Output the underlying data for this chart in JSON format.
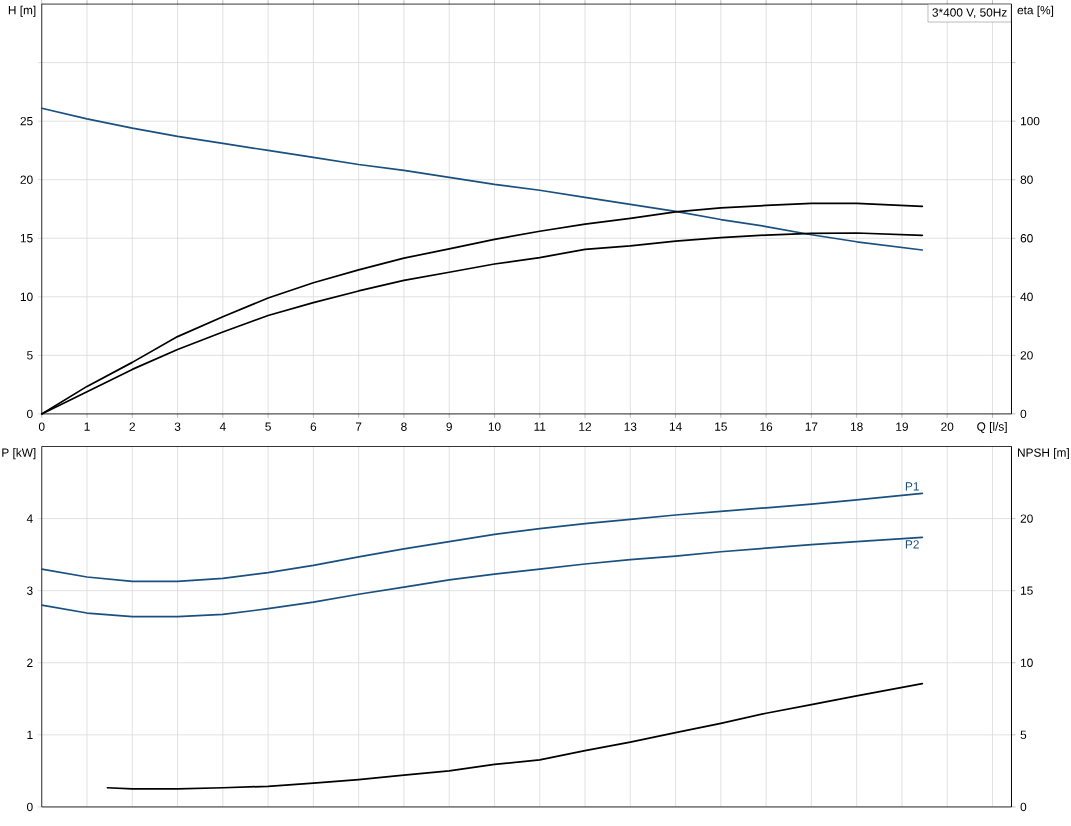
{
  "chart_data": [
    {
      "type": "line",
      "xlabel": "Q [l/s]",
      "ylabel": "H [m]",
      "y2label": "eta [%]",
      "annotations": [
        "3*400 V, 50Hz"
      ],
      "xlim": [
        0,
        21.42
      ],
      "xticks": [
        0,
        1,
        2,
        3,
        4,
        5,
        6,
        7,
        8,
        9,
        10,
        11,
        12,
        13,
        14,
        15,
        16,
        17,
        18,
        19,
        20,
        {
          "value": 21,
          "label": null
        }
      ],
      "ylim": [
        0,
        35
      ],
      "yticks": [
        0,
        5,
        10,
        15,
        20,
        25,
        {
          "value": 30,
          "label": null
        }
      ],
      "y2lim": [
        0,
        140
      ],
      "y2ticks": [
        0,
        20,
        40,
        60,
        80,
        100,
        {
          "value": 120,
          "label": null
        }
      ],
      "grid": true,
      "x": [
        0,
        1,
        2,
        3,
        4,
        5,
        6,
        7,
        8,
        9,
        10,
        11,
        12,
        13,
        14,
        15,
        16,
        17,
        18,
        19.45
      ],
      "series": [
        {
          "color": "#1a5080",
          "values": [
            26.1,
            25.2,
            24.4,
            23.7,
            23.1,
            22.5,
            21.9,
            21.3,
            20.8,
            20.2,
            19.6,
            19.1,
            18.5,
            17.9,
            17.3,
            16.6,
            16.0,
            15.3,
            14.7,
            14.0
          ]
        },
        {
          "color": "#000000",
          "axis": "y2",
          "values": [
            0,
            9.4,
            17.6,
            26.4,
            33.2,
            39.6,
            44.8,
            49.2,
            53.2,
            56.4,
            59.6,
            62.4,
            64.8,
            66.8,
            69,
            70.4,
            71.2,
            71.9,
            71.9,
            70.9
          ]
        },
        {
          "color": "#000000",
          "axis": "y2",
          "values": [
            0,
            7.6,
            15.2,
            22,
            28,
            33.6,
            38,
            42,
            45.6,
            48.4,
            51.2,
            53.4,
            56.2,
            57.4,
            59,
            60.2,
            61.1,
            61.7,
            61.8,
            61
          ]
        }
      ]
    },
    {
      "type": "line",
      "ylabel": "P [kW]",
      "y2label": "NPSH [m]",
      "tick_labels": "y",
      "xlim": [
        0,
        21.42
      ],
      "xticks": [
        0,
        1,
        2,
        3,
        4,
        5,
        6,
        7,
        8,
        9,
        10,
        11,
        12,
        13,
        14,
        15,
        16,
        17,
        18,
        19,
        20,
        21
      ],
      "ylim": [
        0,
        5
      ],
      "yticks": [
        0,
        1,
        2,
        3,
        4
      ],
      "y2lim": [
        0,
        25
      ],
      "y2ticks": [
        0,
        5,
        10,
        15,
        20
      ],
      "grid": true,
      "x": [
        0,
        1,
        2,
        3,
        4,
        5,
        6,
        7,
        8,
        9,
        10,
        11,
        12,
        13,
        14,
        15,
        16,
        17,
        18,
        19.45
      ],
      "series": [
        {
          "name": "P1",
          "color": "#1a5080",
          "values": [
            3.3,
            3.19,
            3.13,
            3.13,
            3.17,
            3.25,
            3.35,
            3.47,
            3.58,
            3.68,
            3.78,
            3.86,
            3.93,
            3.99,
            4.05,
            4.1,
            4.15,
            4.2,
            4.26,
            4.35
          ]
        },
        {
          "name": "P2",
          "color": "#1a5080",
          "values": [
            2.8,
            2.69,
            2.64,
            2.64,
            2.67,
            2.75,
            2.84,
            2.95,
            3.05,
            3.15,
            3.23,
            3.3,
            3.37,
            3.43,
            3.48,
            3.54,
            3.59,
            3.64,
            3.68,
            3.74
          ]
        },
        {
          "color": "#000000",
          "axis": "y2",
          "x": [
            1.45,
            2,
            3,
            4,
            5,
            6,
            7,
            8,
            9,
            10,
            11,
            12,
            13,
            14,
            15,
            16,
            17,
            18,
            19.45
          ],
          "values": [
            1.33,
            1.25,
            1.25,
            1.33,
            1.43,
            1.65,
            1.9,
            2.2,
            2.5,
            2.95,
            3.27,
            3.9,
            4.5,
            5.15,
            5.8,
            6.5,
            7.1,
            7.7,
            8.55
          ]
        }
      ]
    }
  ]
}
